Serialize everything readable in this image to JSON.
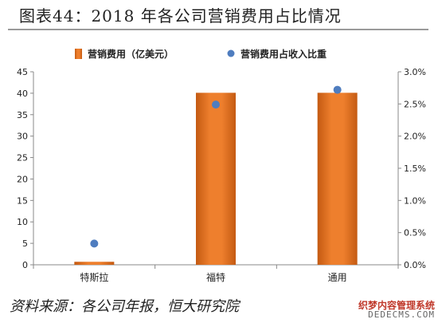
{
  "figure": {
    "title": "图表44：2018 年各公司营销费用占比情况",
    "source": "资料来源：各公司年报，恒大研究院"
  },
  "watermark": {
    "line1": "织梦内容管理系统",
    "line2": "DEDECMS.COM"
  },
  "colors": {
    "bar": "#ee7f2d",
    "bar_dark": "#c45a12",
    "dot": "#4f7dbf",
    "axis": "#888888",
    "text": "#222222"
  },
  "chart_data": {
    "type": "bar",
    "categories": [
      "特斯拉",
      "福特",
      "通用"
    ],
    "series": [
      {
        "name": "营销费用（亿美元）",
        "kind": "bar",
        "axis": "left",
        "values": [
          0.7,
          40.1,
          40.1
        ]
      },
      {
        "name": "营销费用占收入比重",
        "kind": "scatter",
        "axis": "right",
        "values": [
          0.0033,
          0.0249,
          0.0272
        ]
      }
    ],
    "ylim": [
      0,
      45
    ],
    "y_ticks": [
      "0",
      "5",
      "10",
      "15",
      "20",
      "25",
      "30",
      "35",
      "40",
      "45"
    ],
    "y2lim": [
      0,
      0.03
    ],
    "y2_ticks": [
      "0.0%",
      "0.5%",
      "1.0%",
      "1.5%",
      "2.0%",
      "2.5%",
      "3.0%"
    ],
    "legend_position": "top",
    "grid": false
  }
}
